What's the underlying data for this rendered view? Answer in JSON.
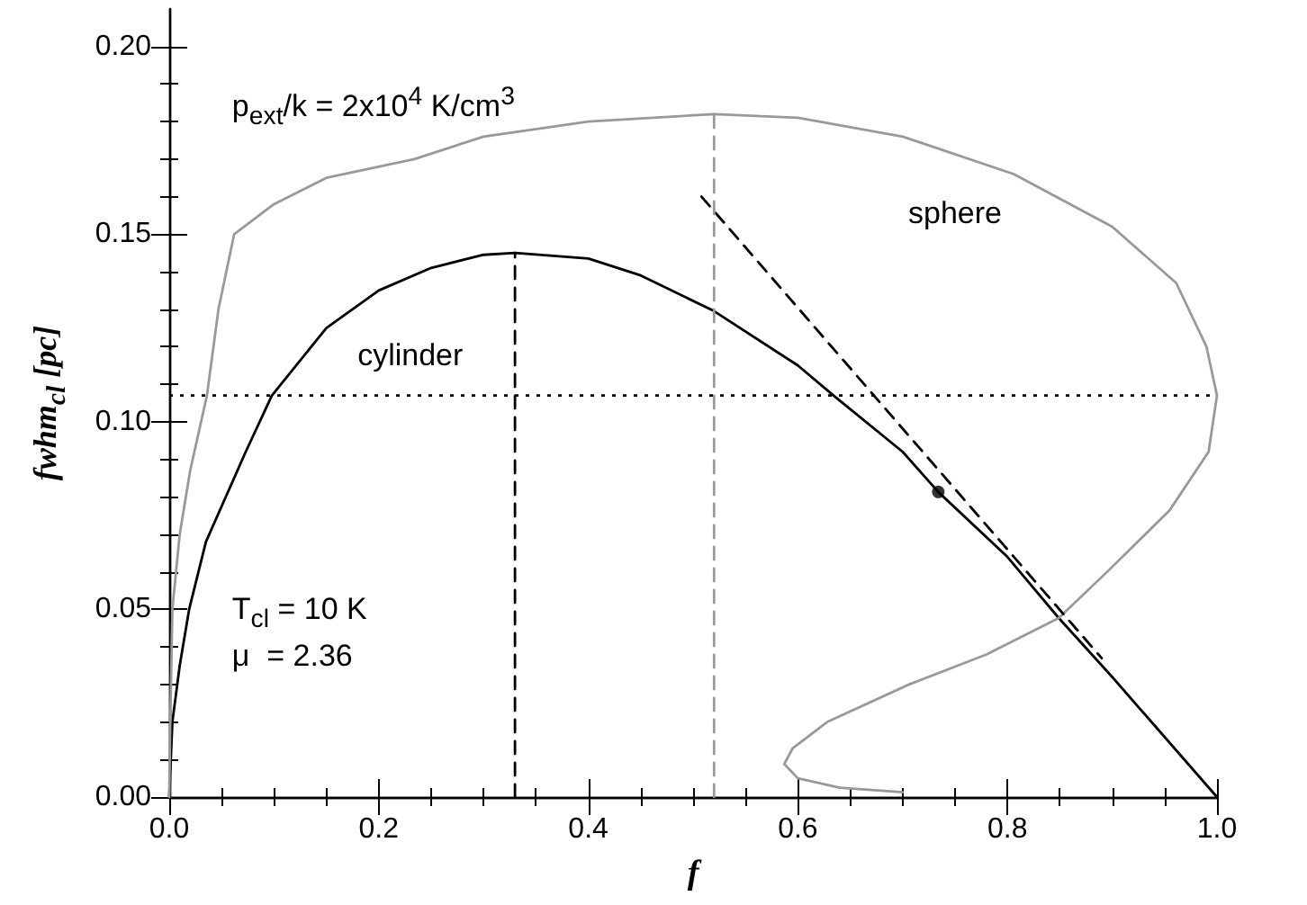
{
  "chart_data": {
    "type": "line",
    "xlabel": "f",
    "ylabel": "fwhm$_{cl}$ [pc]",
    "xlim": [
      0,
      1
    ],
    "ylim": [
      0,
      0.21
    ],
    "xticks": [
      {
        "value": 0,
        "label": "0.0"
      },
      {
        "value": 0.2,
        "label": "0.2"
      },
      {
        "value": 0.4,
        "label": "0.4"
      },
      {
        "value": 0.6,
        "label": "0.6"
      },
      {
        "value": 0.8,
        "label": "0.8"
      },
      {
        "value": 1,
        "label": "1.0"
      }
    ],
    "yticks": [
      {
        "value": 0,
        "label": "0.00"
      },
      {
        "value": 0.05,
        "label": "0.05"
      },
      {
        "value": 0.1,
        "label": "0.10"
      },
      {
        "value": 0.15,
        "label": "0.15"
      },
      {
        "value": 0.2,
        "label": "0.20"
      }
    ],
    "grid": false,
    "marker": "none",
    "line_style": "solid",
    "series": [
      {
        "color": "#000000",
        "x": [
          0,
          0.003,
          0.01,
          0.019,
          0.035,
          0.073,
          0.098,
          0.15,
          0.2,
          0.25,
          0.3,
          0.33,
          0.4,
          0.45,
          0.52,
          0.6,
          0.634,
          0.7,
          0.734,
          0.8,
          0.849,
          0.9,
          0.95,
          1
        ],
        "values": [
          0,
          0.02,
          0.035,
          0.05,
          0.068,
          0.092,
          0.107,
          0.125,
          0.135,
          0.141,
          0.1445,
          0.145,
          0.1435,
          0.139,
          0.1295,
          0.115,
          0.107,
          0.092,
          0.0813,
          0.064,
          0.0477,
          0.032,
          0.016,
          0
        ]
      },
      {
        "color": "#999999",
        "x": [
          0,
          0.001,
          0.003,
          0.01,
          0.02,
          0.036,
          0.047,
          0.062,
          0.1,
          0.15,
          0.234,
          0.3,
          0.4,
          0.52,
          0.6,
          0.7,
          0.806,
          0.9,
          0.961,
          0.99,
          1,
          0.992,
          0.955,
          0.897,
          0.849,
          0.78,
          0.706,
          0.628,
          0.595,
          0.587,
          0.6,
          0.64,
          0.7
        ],
        "values": [
          0,
          0.02,
          0.05,
          0.07,
          0.087,
          0.107,
          0.13,
          0.15,
          0.158,
          0.165,
          0.17,
          0.176,
          0.18,
          0.182,
          0.181,
          0.176,
          0.166,
          0.152,
          0.137,
          0.12,
          0.107,
          0.092,
          0.0765,
          0.0605,
          0.0477,
          0.038,
          0.03,
          0.02,
          0.013,
          0.0088,
          0.005,
          0.0025,
          0.0013
        ]
      },
      {
        "color": "#000000",
        "line_style": "dashed",
        "x": [
          0.508,
          0.89
        ],
        "values": [
          0.16,
          0.037
        ]
      },
      {
        "color": "#000000",
        "line_style": "dashed",
        "x": [
          0.33,
          0.33
        ],
        "values": [
          0,
          0.145
        ]
      },
      {
        "color": "#999999",
        "line_style": "dashed",
        "x": [
          0.52,
          0.52
        ],
        "values": [
          0,
          0.182
        ]
      },
      {
        "type": "scatter",
        "marker": "circle",
        "color": "#000000",
        "x": [
          0.734
        ],
        "values": [
          0.0813
        ]
      }
    ],
    "ref_lines": [
      {
        "axis": "y",
        "value": 0.107,
        "color": "#000000",
        "line_style": "dotted"
      }
    ],
    "annotations": [
      "p$_{ext}$/k = 2x10$^{4}$ K/cm$^{3}$",
      "T$_{cl}$ = 10 K",
      "μ  = 2.36",
      "cylinder",
      "sphere"
    ]
  }
}
